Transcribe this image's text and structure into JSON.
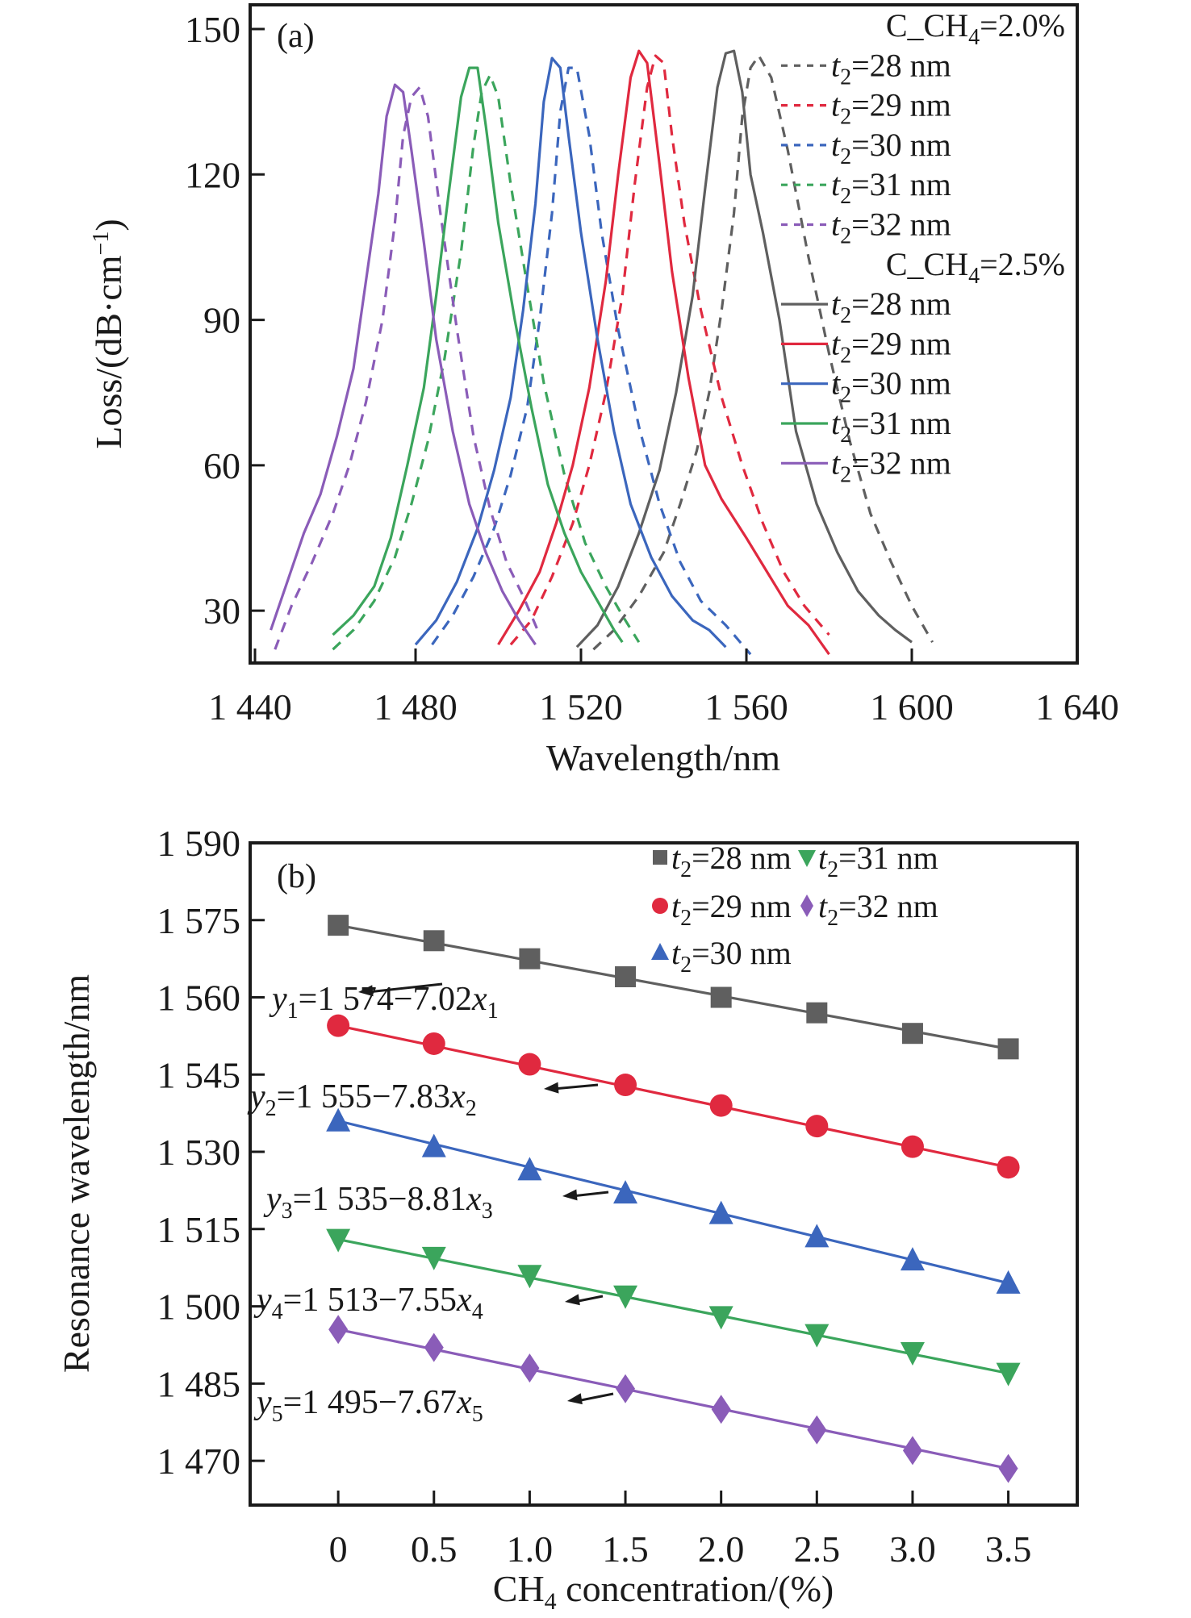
{
  "chart_data": [
    {
      "type": "line",
      "panel_label": "(a)",
      "xlabel": "Wavelength/nm",
      "ylabel": "Loss/(dB·cm⁻¹)",
      "xlim": [
        1440,
        1640
      ],
      "ylim": [
        19.2,
        155
      ],
      "xticks": [
        1440,
        1480,
        1520,
        1560,
        1600,
        1640
      ],
      "xtick_labels": [
        "1 440",
        "1 480",
        "1 520",
        "1 560",
        "1 600",
        "1 640"
      ],
      "yticks": [
        30,
        60,
        90,
        120,
        150
      ],
      "ytick_labels": [
        "30",
        "60",
        "90",
        "120",
        "150"
      ],
      "grid": false,
      "legend_placement": "top-right",
      "legend_groups": [
        {
          "title": "C_CH",
          "title_sub": "4",
          "title_suffix": "=2.0%",
          "style": "dashed",
          "entries": [
            "=28 nm",
            "=29 nm",
            "=30 nm",
            "=31 nm",
            "=32 nm"
          ]
        },
        {
          "title": "C_CH",
          "title_sub": "4",
          "title_suffix": "=2.5%",
          "style": "solid",
          "entries": [
            "=28 nm",
            "=29 nm",
            "=30 nm",
            "=31 nm",
            "=32 nm"
          ]
        }
      ],
      "legend_var": "t",
      "legend_var_sub": "2",
      "series": [
        {
          "name": "C_CH4=2.0%, t2=28 nm",
          "style": "dashed",
          "color": "#5f5f5f",
          "x": [
            1523,
            1528,
            1534,
            1540,
            1544,
            1548,
            1551,
            1554,
            1557,
            1559,
            1561,
            1563,
            1566,
            1570,
            1575,
            1580,
            1585,
            1590,
            1595,
            1600,
            1605
          ],
          "y": [
            22,
            26,
            33,
            42,
            52,
            63,
            75,
            92,
            112,
            132,
            142,
            144.5,
            140,
            125,
            103,
            83,
            65,
            50,
            40,
            31,
            23.5
          ]
        },
        {
          "name": "C_CH4=2.0%, t2=29 nm",
          "style": "dashed",
          "color": "#e0293f",
          "x": [
            1503,
            1508,
            1513,
            1518,
            1522,
            1526,
            1530,
            1533,
            1536,
            1538,
            1540,
            1542,
            1545,
            1549,
            1554,
            1559,
            1564,
            1569,
            1574,
            1580
          ],
          "y": [
            23,
            28,
            37,
            48,
            60,
            75,
            95,
            118,
            138,
            144.5,
            143,
            128,
            110,
            92,
            74,
            60,
            48,
            38,
            31,
            25
          ]
        },
        {
          "name": "C_CH4=2.0%, t2=30 nm",
          "style": "dashed",
          "color": "#3b66bd",
          "x": [
            1484,
            1489,
            1494,
            1499,
            1503,
            1507,
            1510,
            1513,
            1515,
            1517,
            1519,
            1522,
            1525,
            1529,
            1534,
            1539,
            1544,
            1549,
            1555,
            1561
          ],
          "y": [
            23,
            29,
            37,
            47,
            58,
            72,
            90,
            112,
            133,
            142,
            142,
            128,
            108,
            88,
            68,
            52,
            40,
            32,
            27,
            21
          ]
        },
        {
          "name": "C_CH4=2.0%, t2=31 nm",
          "style": "dashed",
          "color": "#3ba55c",
          "x": [
            1460,
            1465,
            1470,
            1475,
            1479,
            1483,
            1487,
            1491,
            1494,
            1496,
            1498,
            1500,
            1503,
            1507,
            1511,
            1516,
            1521,
            1526,
            1530,
            1534
          ],
          "y": [
            22,
            26,
            32,
            41,
            52,
            65,
            82,
            104,
            126,
            137,
            140.5,
            136,
            118,
            97,
            77,
            58,
            44,
            35,
            29,
            23.5
          ]
        },
        {
          "name": "C_CH4=2.0%, t2=32 nm",
          "style": "dashed",
          "color": "#8a5cb8",
          "x": [
            1446,
            1450,
            1455,
            1460,
            1464,
            1468,
            1472,
            1475,
            1477,
            1479,
            1481,
            1483,
            1486,
            1490,
            1494,
            1498,
            1502,
            1506,
            1510
          ],
          "y": [
            22,
            31,
            40,
            50,
            60,
            73,
            90,
            110,
            128,
            136,
            138,
            132,
            112,
            88,
            66,
            51,
            40,
            33,
            25
          ]
        },
        {
          "name": "C_CH4=2.5%, t2=28 nm",
          "style": "solid",
          "color": "#5f5f5f",
          "x": [
            1519,
            1524,
            1529,
            1534,
            1539,
            1543,
            1547,
            1550,
            1553,
            1555,
            1557,
            1559,
            1561,
            1564,
            1568,
            1572,
            1577,
            1582,
            1587,
            1592,
            1596,
            1600
          ],
          "y": [
            22.5,
            27,
            35,
            46,
            59,
            75,
            95,
            117,
            138,
            145,
            145.5,
            137,
            120,
            108,
            90,
            67,
            52,
            42,
            34,
            29,
            26,
            23.5
          ]
        },
        {
          "name": "C_CH4=2.5%, t2=29 nm",
          "style": "solid",
          "color": "#e0293f",
          "x": [
            1500,
            1505,
            1510,
            1514,
            1518,
            1522,
            1526,
            1529,
            1532,
            1534,
            1536,
            1539,
            1542,
            1546,
            1550,
            1554,
            1560,
            1565,
            1570,
            1575,
            1580
          ],
          "y": [
            23,
            30,
            38,
            48,
            60,
            76,
            98,
            120,
            140,
            145.5,
            143,
            122,
            100,
            78,
            60,
            53,
            45,
            38,
            31,
            27,
            21
          ]
        },
        {
          "name": "C_CH4=2.5%, t2=30 nm",
          "style": "solid",
          "color": "#3b66bd",
          "x": [
            1480,
            1485,
            1490,
            1495,
            1499,
            1503,
            1506,
            1509,
            1511,
            1513,
            1515,
            1517,
            1520,
            1524,
            1528,
            1532,
            1537,
            1542,
            1547,
            1551,
            1555
          ],
          "y": [
            23,
            28,
            36,
            47,
            59,
            74,
            92,
            114,
            135,
            144,
            142,
            128,
            108,
            86,
            67,
            52,
            41,
            33,
            28,
            26,
            22.5
          ]
        },
        {
          "name": "C_CH4=2.5%, t2=31 nm",
          "style": "solid",
          "color": "#3ba55c",
          "x": [
            1460,
            1465,
            1470,
            1474,
            1478,
            1482,
            1485,
            1488,
            1491,
            1493,
            1495,
            1497,
            1500,
            1504,
            1508,
            1512,
            1516,
            1520,
            1524,
            1528,
            1530
          ],
          "y": [
            25,
            29,
            35,
            45,
            60,
            76,
            95,
            116,
            136,
            142,
            142,
            130,
            110,
            90,
            72,
            56,
            46,
            38,
            32,
            26,
            23.5
          ]
        },
        {
          "name": "C_CH4=2.5%, t2=32 nm",
          "style": "solid",
          "color": "#8a5cb8",
          "x": [
            1445,
            1449,
            1453,
            1457,
            1461,
            1465,
            1468,
            1471,
            1473,
            1475,
            1477,
            1479,
            1482,
            1485,
            1489,
            1493,
            1497,
            1501,
            1505,
            1509
          ],
          "y": [
            26,
            36,
            46,
            54,
            66,
            80,
            98,
            116,
            132,
            138.5,
            137,
            125,
            106,
            86,
            67,
            52,
            42,
            34,
            28,
            23
          ]
        }
      ]
    },
    {
      "type": "scatter",
      "panel_label": "(b)",
      "xlabel": "CH",
      "xlabel_sub": "4",
      "xlabel_suffix": " concentration/(%)",
      "ylabel": "Resonance wavelength/nm",
      "xlim": [
        -0.46,
        3.86
      ],
      "ylim": [
        1461.4,
        1590
      ],
      "xticks": [
        0,
        0.5,
        1.0,
        1.5,
        2.0,
        2.5,
        3.0,
        3.5
      ],
      "xtick_labels": [
        "0",
        "0.5",
        "1.0",
        "1.5",
        "2.0",
        "2.5",
        "3.0",
        "3.5"
      ],
      "yticks": [
        1470,
        1485,
        1500,
        1515,
        1530,
        1545,
        1560,
        1575,
        1590
      ],
      "ytick_labels": [
        "1 470",
        "1 485",
        "1 500",
        "1 515",
        "1 530",
        "1 545",
        "1 560",
        "1 575",
        "1 590"
      ],
      "grid": false,
      "legend_placement": "top-right",
      "x": [
        0,
        0.5,
        1.0,
        1.5,
        2.0,
        2.5,
        3.0,
        3.5
      ],
      "series": [
        {
          "name": "=28 nm",
          "marker": "square",
          "color": "#5f5f5f",
          "values": [
            1574,
            1571,
            1567.5,
            1564,
            1560,
            1557,
            1553,
            1550
          ],
          "fit": {
            "label_var": "y",
            "label_sub": "1",
            "text": "=1 574−7.02",
            "x_var": "x",
            "x_sub": "1",
            "intercept": 1574,
            "slope": -7.02
          }
        },
        {
          "name": "=29 nm",
          "marker": "circle",
          "color": "#e0293f",
          "values": [
            1554.5,
            1551,
            1547,
            1543,
            1539,
            1535,
            1531,
            1527
          ],
          "fit": {
            "label_var": "y",
            "label_sub": "2",
            "text": "=1 555−7.83",
            "x_var": "x",
            "x_sub": "2",
            "intercept": 1555,
            "slope": -7.83
          }
        },
        {
          "name": "=30 nm",
          "marker": "triangle-up",
          "color": "#3b66bd",
          "values": [
            1536,
            1531,
            1526.5,
            1522,
            1518,
            1513.5,
            1509,
            1504.5
          ],
          "fit": {
            "label_var": "y",
            "label_sub": "3",
            "text": "=1 535−8.81",
            "x_var": "x",
            "x_sub": "3",
            "intercept": 1535,
            "slope": -8.81
          }
        },
        {
          "name": "=31 nm",
          "marker": "triangle-down",
          "color": "#3ba55c",
          "values": [
            1513,
            1509.5,
            1506,
            1502,
            1498,
            1494.5,
            1491,
            1487
          ],
          "fit": {
            "label_var": "y",
            "label_sub": "4",
            "text": "=1 513−7.55",
            "x_var": "x",
            "x_sub": "4",
            "intercept": 1513,
            "slope": -7.55
          }
        },
        {
          "name": "=32 nm",
          "marker": "diamond",
          "color": "#8a5cb8",
          "values": [
            1495.5,
            1492,
            1488,
            1484,
            1480,
            1476,
            1472,
            1468.5
          ],
          "fit": {
            "label_var": "y",
            "label_sub": "5",
            "text": "=1 495−7.67",
            "x_var": "x",
            "x_sub": "5",
            "intercept": 1495,
            "slope": -7.67
          }
        }
      ],
      "legend_var": "t",
      "legend_var_sub": "2"
    }
  ]
}
